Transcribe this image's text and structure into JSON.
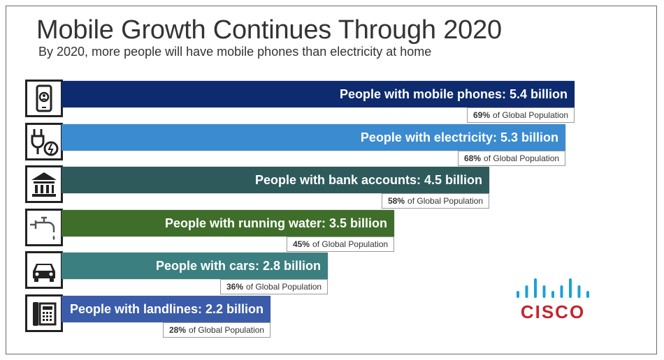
{
  "chart_data": {
    "type": "bar",
    "orientation": "horizontal",
    "title": "Mobile Growth Continues Through 2020",
    "subtitle": "By 2020, more people will have mobile phones than electricity at home",
    "unit": "billion",
    "bars": [
      {
        "label": "People with mobile phones: 5.4 billion",
        "value": 5.4,
        "pct_value": "69%",
        "pct_suffix": "of Global Population",
        "color": "#0d2b6e",
        "icon": "mobile-phone-icon"
      },
      {
        "label": "People with electricity: 5.3 billion",
        "value": 5.3,
        "pct_value": "68%",
        "pct_suffix": "of Global Population",
        "color": "#3b8bd0",
        "icon": "plug-electricity-icon"
      },
      {
        "label": "People with bank accounts: 4.5 billion",
        "value": 4.5,
        "pct_value": "58%",
        "pct_suffix": "of Global Population",
        "color": "#2e5a5c",
        "icon": "bank-icon"
      },
      {
        "label": "People with running water: 3.5 billion",
        "value": 3.5,
        "pct_value": "45%",
        "pct_suffix": "of Global Population",
        "color": "#3f6e2a",
        "icon": "water-faucet-icon"
      },
      {
        "label": "People with cars: 2.8 billion",
        "value": 2.8,
        "pct_value": "36%",
        "pct_suffix": "of Global Population",
        "color": "#3b7f80",
        "icon": "car-icon"
      },
      {
        "label": "People with landlines: 2.2 billion",
        "value": 2.2,
        "pct_value": "28%",
        "pct_suffix": "of Global Population",
        "color": "#3b5ca8",
        "icon": "landline-phone-icon"
      }
    ]
  },
  "brand": {
    "logo_text": "CISCO",
    "logo_color": "#1ba0d7",
    "logo_text_color": "#c4262e"
  }
}
